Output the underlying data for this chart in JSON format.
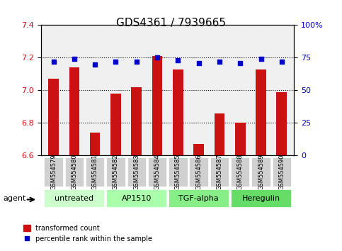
{
  "title": "GDS4361 / 7939665",
  "categories": [
    "GSM554579",
    "GSM554580",
    "GSM554581",
    "GSM554582",
    "GSM554583",
    "GSM554584",
    "GSM554585",
    "GSM554586",
    "GSM554587",
    "GSM554588",
    "GSM554589",
    "GSM554590"
  ],
  "bar_values": [
    7.07,
    7.14,
    6.74,
    6.98,
    7.02,
    7.21,
    7.13,
    6.67,
    6.86,
    6.8,
    7.13,
    6.99
  ],
  "percentile_values": [
    72,
    74,
    70,
    72,
    72,
    75,
    73,
    71,
    72,
    71,
    74,
    72
  ],
  "ylim": [
    6.6,
    7.4
  ],
  "ylim_right": [
    0,
    100
  ],
  "yticks_left": [
    6.6,
    6.8,
    7.0,
    7.2,
    7.4
  ],
  "yticks_right": [
    0,
    25,
    50,
    75,
    100
  ],
  "ytick_right_labels": [
    "0",
    "25",
    "50",
    "75",
    "100%"
  ],
  "bar_color": "#cc1111",
  "dot_color": "#0000cc",
  "grid_color": "#000000",
  "bg_color": "#f0f0f0",
  "groups": [
    {
      "label": "untreated",
      "start": 0,
      "end": 3,
      "color": "#ccffcc"
    },
    {
      "label": "AP1510",
      "start": 3,
      "end": 6,
      "color": "#aaffaa"
    },
    {
      "label": "TGF-alpha",
      "start": 6,
      "end": 9,
      "color": "#88ee88"
    },
    {
      "label": "Heregulin",
      "start": 9,
      "end": 12,
      "color": "#66dd66"
    }
  ],
  "xlabel_color": "#cc1111",
  "ylabel_left_color": "#cc1111",
  "ylabel_right_color": "#0000cc",
  "legend_bar_label": "transformed count",
  "legend_dot_label": "percentile rank within the sample",
  "agent_label": "agent"
}
